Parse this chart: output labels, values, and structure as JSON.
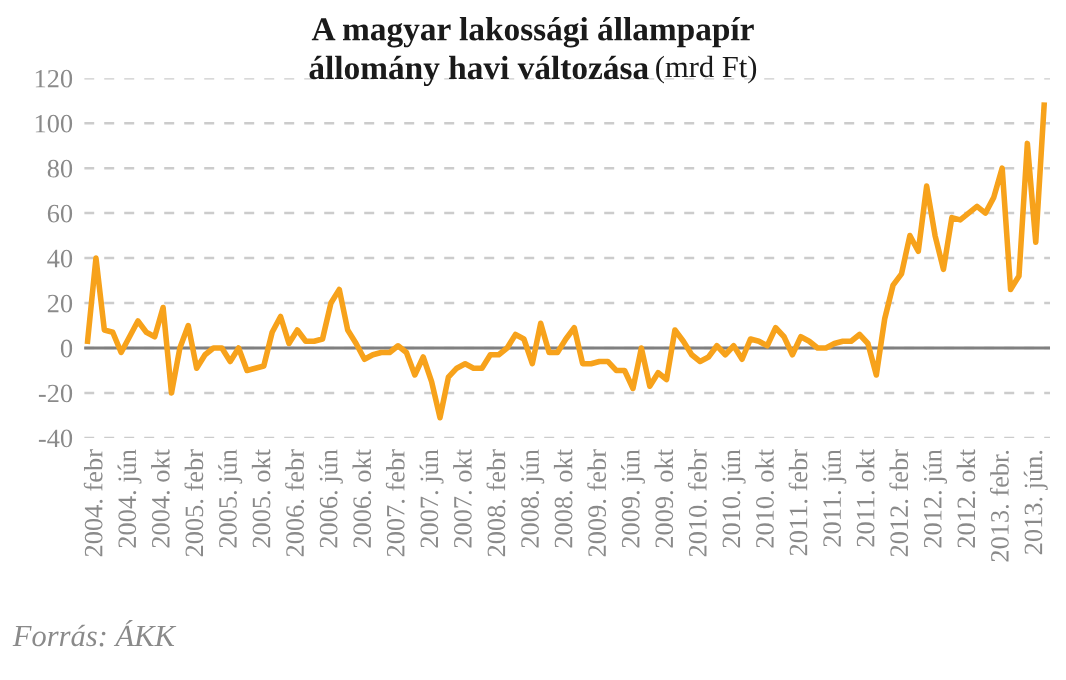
{
  "chart_data": {
    "type": "line",
    "title": "A magyar lakossági állampapír\nállomány havi változása",
    "subtitle": "(mrd Ft)",
    "annotations": [
      "Forrás: ÁKK"
    ],
    "categories": [
      null,
      "2004. febr",
      null,
      null,
      null,
      "2004. jún",
      null,
      null,
      null,
      "2004. okt",
      null,
      null,
      null,
      "2005. febr",
      null,
      null,
      null,
      "2005. jún",
      null,
      null,
      null,
      "2005. okt",
      null,
      null,
      null,
      "2006. febr",
      null,
      null,
      null,
      "2006. jún",
      null,
      null,
      null,
      "2006. okt",
      null,
      null,
      null,
      "2007. febr",
      null,
      null,
      null,
      "2007. jún",
      null,
      null,
      null,
      "2007. okt",
      null,
      null,
      null,
      "2008. febr",
      null,
      null,
      null,
      "2008. jún",
      null,
      null,
      null,
      "2008. okt",
      null,
      null,
      null,
      "2009. febr",
      null,
      null,
      null,
      "2009. jún",
      null,
      null,
      null,
      "2009. okt",
      null,
      null,
      null,
      "2010. febr",
      null,
      null,
      null,
      "2010. jún",
      null,
      null,
      null,
      "2010. okt",
      null,
      null,
      null,
      "2011. febr",
      null,
      null,
      null,
      "2011. jún",
      null,
      null,
      null,
      "2011. okt",
      null,
      null,
      null,
      "2012. febr",
      null,
      null,
      null,
      "2012. jún",
      null,
      null,
      null,
      "2012. okt",
      null,
      null,
      null,
      "2013. febr.",
      null,
      null,
      null,
      "2013. jún.",
      null
    ],
    "series": [
      {
        "color": "#f7a21b",
        "values": [
          3,
          40,
          8,
          7,
          -2,
          5,
          12,
          7,
          5,
          18,
          -20,
          0,
          10,
          -9,
          -3,
          0,
          0,
          -6,
          0,
          -10,
          -9,
          -8,
          7,
          14,
          2,
          8,
          3,
          3,
          4,
          20,
          26,
          8,
          2,
          -5,
          -3,
          -2,
          -2,
          1,
          -2,
          -12,
          -4,
          -15,
          -31,
          -13,
          -9,
          -7,
          -9,
          -9,
          -3,
          -3,
          0,
          6,
          4,
          -7,
          11,
          -2,
          -2,
          4,
          9,
          -7,
          -7,
          -6,
          -6,
          -10,
          -10,
          -18,
          0,
          -17,
          -11,
          -14,
          8,
          3,
          -3,
          -6,
          -4,
          1,
          -3,
          1,
          -5,
          4,
          3,
          1,
          9,
          5,
          -3,
          5,
          3,
          0,
          0,
          2,
          3,
          3,
          6,
          2,
          -12,
          13,
          28,
          33,
          50,
          43,
          72,
          50,
          35,
          58,
          57,
          60,
          63,
          60,
          67,
          80,
          26,
          32,
          91,
          47,
          108
        ]
      }
    ],
    "ylim": [
      -40,
      120
    ],
    "yticks": [
      -40,
      -20,
      0,
      20,
      40,
      60,
      80,
      100,
      120
    ],
    "grid": "y",
    "ref_lines": [
      {
        "axis": "y",
        "value": 0,
        "color": "#808080"
      }
    ],
    "marker": "none",
    "line_style": "solid",
    "legend": false
  }
}
